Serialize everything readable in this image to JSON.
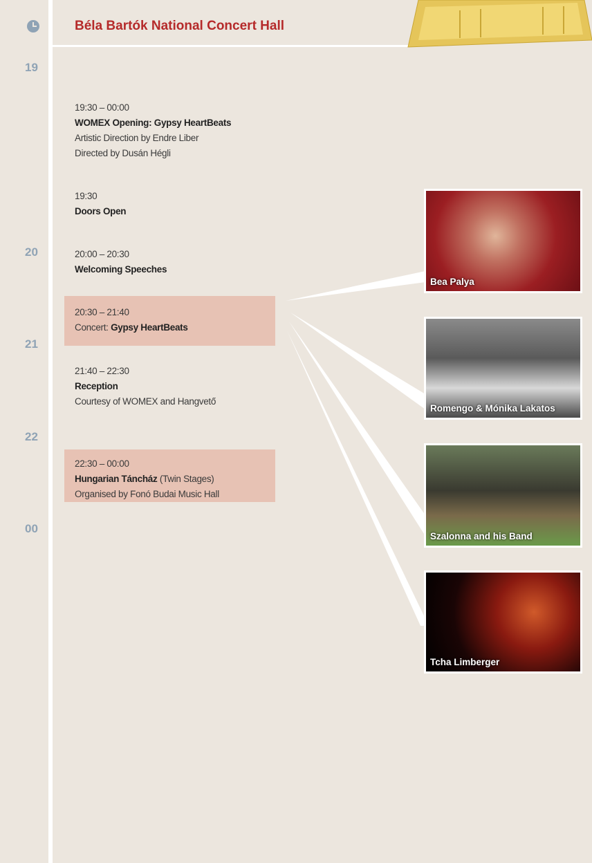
{
  "header": {
    "title": "Béla Bartók National Concert Hall"
  },
  "hours": [
    "19",
    "20",
    "21",
    "22",
    "00"
  ],
  "events": [
    {
      "time": "19:30 – 00:00",
      "title": "WOMEX Opening: Gypsy HeartBeats",
      "lines": [
        "Artistic Direction by Endre Liber",
        "Directed by Dusán Hégli"
      ]
    },
    {
      "time": "19:30",
      "title": "Doors Open"
    },
    {
      "time": "20:00 – 20:30",
      "title": "Welcoming Speeches"
    },
    {
      "time": "20:30 – 21:40",
      "prefix": "Concert:",
      "title": "Gypsy HeartBeats"
    },
    {
      "time": "21:40 – 22:30",
      "title": "Reception",
      "lines": [
        "Courtesy of WOMEX and Hangvető"
      ]
    },
    {
      "time": "22:30 – 00:00",
      "title": "Hungarian Táncház",
      "suffix": "(Twin Stages)",
      "lines": [
        "Organised by Fonó Budai Music Hall"
      ]
    }
  ],
  "performers": [
    "Bea Palya",
    "Romengo & Mónika Lakatos",
    "Szalonna and his Band",
    "Tcha Limberger"
  ]
}
